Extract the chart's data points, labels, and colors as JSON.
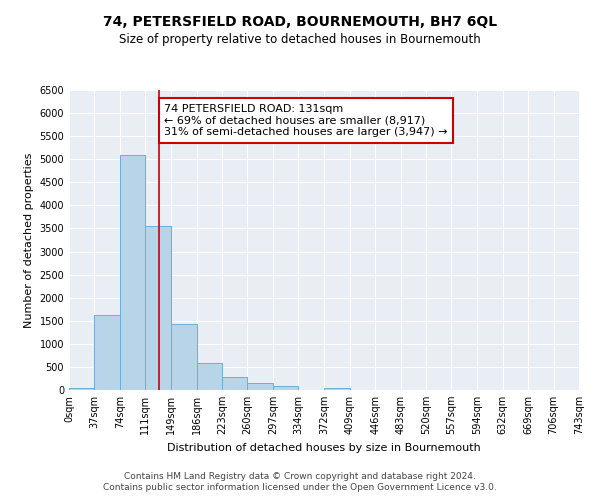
{
  "title": "74, PETERSFIELD ROAD, BOURNEMOUTH, BH7 6QL",
  "subtitle": "Size of property relative to detached houses in Bournemouth",
  "xlabel": "Distribution of detached houses by size in Bournemouth",
  "ylabel": "Number of detached properties",
  "bin_edges": [
    0,
    37,
    74,
    111,
    149,
    186,
    223,
    260,
    297,
    334,
    372,
    409,
    446,
    483,
    520,
    557,
    594,
    632,
    669,
    706,
    743
  ],
  "bar_heights": [
    50,
    1630,
    5100,
    3560,
    1430,
    580,
    290,
    150,
    80,
    0,
    50,
    0,
    0,
    0,
    0,
    0,
    0,
    0,
    0,
    0
  ],
  "bar_color": "#b8d4e8",
  "bar_edgecolor": "#6aaed6",
  "vline_x": 131,
  "vline_color": "#cc0000",
  "annotation_text": "74 PETERSFIELD ROAD: 131sqm\n← 69% of detached houses are smaller (8,917)\n31% of semi-detached houses are larger (3,947) →",
  "annotation_box_edgecolor": "#cc0000",
  "annotation_box_facecolor": "#ffffff",
  "ylim": [
    0,
    6500
  ],
  "xlim": [
    0,
    743
  ],
  "yticks": [
    0,
    500,
    1000,
    1500,
    2000,
    2500,
    3000,
    3500,
    4000,
    4500,
    5000,
    5500,
    6000,
    6500
  ],
  "tick_labels": [
    "0sqm",
    "37sqm",
    "74sqm",
    "111sqm",
    "149sqm",
    "186sqm",
    "223sqm",
    "260sqm",
    "297sqm",
    "334sqm",
    "372sqm",
    "409sqm",
    "446sqm",
    "483sqm",
    "520sqm",
    "557sqm",
    "594sqm",
    "632sqm",
    "669sqm",
    "706sqm",
    "743sqm"
  ],
  "footer_line1": "Contains HM Land Registry data © Crown copyright and database right 2024.",
  "footer_line2": "Contains public sector information licensed under the Open Government Licence v3.0.",
  "title_fontsize": 10,
  "subtitle_fontsize": 8.5,
  "xlabel_fontsize": 8,
  "ylabel_fontsize": 8,
  "tick_fontsize": 7,
  "annotation_fontsize": 8,
  "footer_fontsize": 6.5,
  "bg_color": "#e8eef4"
}
